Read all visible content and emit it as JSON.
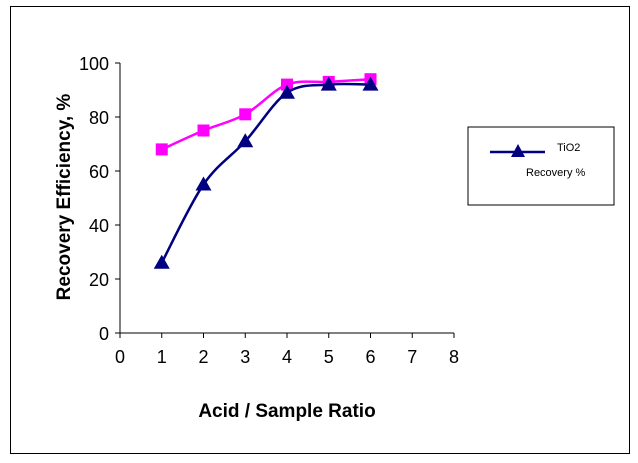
{
  "chart_data": {
    "type": "line",
    "xlabel": "Acid / Sample Ratio",
    "ylabel": "Recovery Efficiency, %",
    "xlim": [
      0,
      8
    ],
    "ylim": [
      0,
      100
    ],
    "x_ticks": [
      "0",
      "1",
      "2",
      "3",
      "4",
      "5",
      "6",
      "7",
      "8"
    ],
    "y_ticks": [
      "0",
      "20",
      "40",
      "60",
      "80",
      "100"
    ],
    "grid": false,
    "legend_position": "right",
    "series": [
      {
        "name": "TiO2",
        "marker": "triangle",
        "color": "#000080",
        "x": [
          1,
          2,
          3,
          4,
          5,
          6
        ],
        "y": [
          26,
          55,
          71,
          89,
          92,
          92
        ]
      },
      {
        "name": "Recovery %",
        "marker": "square",
        "color": "#ff00ff",
        "x": [
          1,
          2,
          3,
          4,
          5,
          6
        ],
        "y": [
          68,
          75,
          81,
          92,
          93,
          94
        ]
      }
    ]
  }
}
